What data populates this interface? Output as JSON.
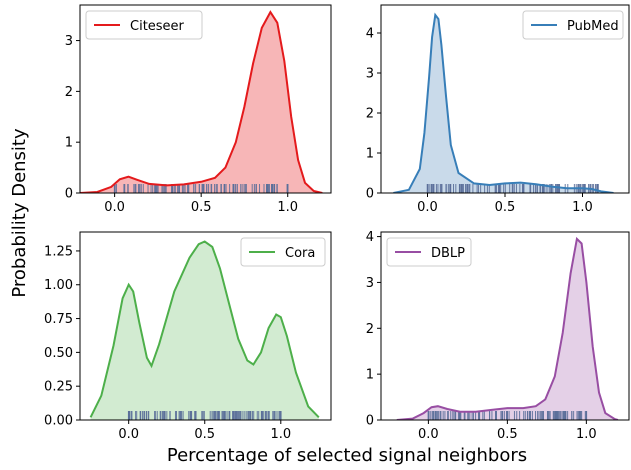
{
  "figure": {
    "xlabel": "Percentage of selected signal neighbors",
    "ylabel": "Probability Density"
  },
  "chart_data": [
    {
      "type": "area",
      "name": "Citeseer",
      "color": "#e41a1c",
      "fill": "#f7b6b7",
      "legend_position": "top-left",
      "xlim": [
        -0.2,
        1.25
      ],
      "ylim": [
        0,
        3.7
      ],
      "xticks": [
        {
          "v": 0.0,
          "label": "0.0"
        },
        {
          "v": 0.5,
          "label": "0.5"
        },
        {
          "v": 1.0,
          "label": "1.0"
        }
      ],
      "yticks": [
        {
          "v": 0,
          "label": "0"
        },
        {
          "v": 1,
          "label": "1"
        },
        {
          "v": 2,
          "label": "2"
        },
        {
          "v": 3,
          "label": "3"
        }
      ],
      "curve": [
        [
          -0.2,
          0.0
        ],
        [
          -0.1,
          0.02
        ],
        [
          -0.02,
          0.12
        ],
        [
          0.03,
          0.27
        ],
        [
          0.08,
          0.32
        ],
        [
          0.13,
          0.26
        ],
        [
          0.2,
          0.18
        ],
        [
          0.3,
          0.15
        ],
        [
          0.4,
          0.17
        ],
        [
          0.5,
          0.22
        ],
        [
          0.58,
          0.3
        ],
        [
          0.64,
          0.5
        ],
        [
          0.7,
          1.0
        ],
        [
          0.75,
          1.7
        ],
        [
          0.8,
          2.55
        ],
        [
          0.85,
          3.25
        ],
        [
          0.9,
          3.56
        ],
        [
          0.94,
          3.35
        ],
        [
          0.98,
          2.6
        ],
        [
          1.02,
          1.5
        ],
        [
          1.06,
          0.65
        ],
        [
          1.1,
          0.2
        ],
        [
          1.15,
          0.04
        ],
        [
          1.2,
          0.0
        ]
      ],
      "rug_range": [
        0.0,
        1.0
      ]
    },
    {
      "type": "area",
      "name": "PubMed",
      "color": "#377eb8",
      "fill": "#c9daea",
      "legend_position": "top-right",
      "xlim": [
        -0.3,
        1.3
      ],
      "ylim": [
        0,
        4.7
      ],
      "xticks": [
        {
          "v": 0.0,
          "label": "0.0"
        },
        {
          "v": 0.5,
          "label": "0.5"
        },
        {
          "v": 1.0,
          "label": "1.0"
        }
      ],
      "yticks": [
        {
          "v": 0,
          "label": "0"
        },
        {
          "v": 1,
          "label": "1"
        },
        {
          "v": 2,
          "label": "2"
        },
        {
          "v": 3,
          "label": "3"
        },
        {
          "v": 4,
          "label": "4"
        }
      ],
      "curve": [
        [
          -0.22,
          0.0
        ],
        [
          -0.12,
          0.08
        ],
        [
          -0.05,
          0.6
        ],
        [
          -0.02,
          1.5
        ],
        [
          0.01,
          2.9
        ],
        [
          0.03,
          3.9
        ],
        [
          0.05,
          4.45
        ],
        [
          0.07,
          4.35
        ],
        [
          0.09,
          3.7
        ],
        [
          0.12,
          2.4
        ],
        [
          0.15,
          1.2
        ],
        [
          0.2,
          0.5
        ],
        [
          0.3,
          0.24
        ],
        [
          0.4,
          0.2
        ],
        [
          0.5,
          0.24
        ],
        [
          0.6,
          0.26
        ],
        [
          0.7,
          0.22
        ],
        [
          0.8,
          0.16
        ],
        [
          0.9,
          0.12
        ],
        [
          1.0,
          0.12
        ],
        [
          1.06,
          0.1
        ],
        [
          1.12,
          0.04
        ],
        [
          1.2,
          0.0
        ]
      ],
      "rug_range": [
        0.0,
        1.1
      ]
    },
    {
      "type": "area",
      "name": "Cora",
      "color": "#4daf4a",
      "fill": "#d2ebd1",
      "legend_position": "top-right",
      "xlim": [
        -0.32,
        1.33
      ],
      "ylim": [
        0,
        1.39
      ],
      "xticks": [
        {
          "v": 0.0,
          "label": "0.0"
        },
        {
          "v": 0.5,
          "label": "0.5"
        },
        {
          "v": 1.0,
          "label": "1.0"
        }
      ],
      "yticks": [
        {
          "v": 0,
          "label": "0.00"
        },
        {
          "v": 0.25,
          "label": "0.25"
        },
        {
          "v": 0.5,
          "label": "0.50"
        },
        {
          "v": 0.75,
          "label": "0.75"
        },
        {
          "v": 1.0,
          "label": "1.00"
        },
        {
          "v": 1.25,
          "label": "1.25"
        }
      ],
      "curve": [
        [
          -0.25,
          0.02
        ],
        [
          -0.18,
          0.18
        ],
        [
          -0.1,
          0.55
        ],
        [
          -0.04,
          0.9
        ],
        [
          0.0,
          1.0
        ],
        [
          0.03,
          0.95
        ],
        [
          0.07,
          0.72
        ],
        [
          0.12,
          0.46
        ],
        [
          0.15,
          0.4
        ],
        [
          0.2,
          0.56
        ],
        [
          0.3,
          0.95
        ],
        [
          0.4,
          1.2
        ],
        [
          0.46,
          1.3
        ],
        [
          0.5,
          1.32
        ],
        [
          0.55,
          1.28
        ],
        [
          0.6,
          1.12
        ],
        [
          0.66,
          0.86
        ],
        [
          0.72,
          0.6
        ],
        [
          0.78,
          0.44
        ],
        [
          0.82,
          0.41
        ],
        [
          0.87,
          0.5
        ],
        [
          0.92,
          0.68
        ],
        [
          0.97,
          0.78
        ],
        [
          1.0,
          0.76
        ],
        [
          1.04,
          0.62
        ],
        [
          1.1,
          0.35
        ],
        [
          1.18,
          0.1
        ],
        [
          1.25,
          0.02
        ]
      ],
      "rug_range": [
        0.0,
        1.0
      ]
    },
    {
      "type": "area",
      "name": "DBLP",
      "color": "#984ea3",
      "fill": "#e4d0e7",
      "legend_position": "top-left",
      "xlim": [
        -0.3,
        1.27
      ],
      "ylim": [
        0,
        4.1
      ],
      "xticks": [
        {
          "v": 0.0,
          "label": "0.0"
        },
        {
          "v": 0.5,
          "label": "0.5"
        },
        {
          "v": 1.0,
          "label": "1.0"
        }
      ],
      "yticks": [
        {
          "v": 0,
          "label": "0"
        },
        {
          "v": 1,
          "label": "1"
        },
        {
          "v": 2,
          "label": "2"
        },
        {
          "v": 3,
          "label": "3"
        },
        {
          "v": 4,
          "label": "4"
        }
      ],
      "curve": [
        [
          -0.2,
          0.0
        ],
        [
          -0.1,
          0.03
        ],
        [
          -0.03,
          0.15
        ],
        [
          0.02,
          0.28
        ],
        [
          0.06,
          0.3
        ],
        [
          0.12,
          0.24
        ],
        [
          0.2,
          0.18
        ],
        [
          0.3,
          0.18
        ],
        [
          0.4,
          0.22
        ],
        [
          0.5,
          0.26
        ],
        [
          0.6,
          0.26
        ],
        [
          0.68,
          0.3
        ],
        [
          0.74,
          0.45
        ],
        [
          0.8,
          0.95
        ],
        [
          0.85,
          1.9
        ],
        [
          0.9,
          3.2
        ],
        [
          0.94,
          3.95
        ],
        [
          0.97,
          3.85
        ],
        [
          1.0,
          3.0
        ],
        [
          1.04,
          1.6
        ],
        [
          1.08,
          0.6
        ],
        [
          1.12,
          0.15
        ],
        [
          1.18,
          0.02
        ],
        [
          1.2,
          0.0
        ]
      ],
      "rug_range": [
        0.0,
        1.0
      ]
    }
  ]
}
